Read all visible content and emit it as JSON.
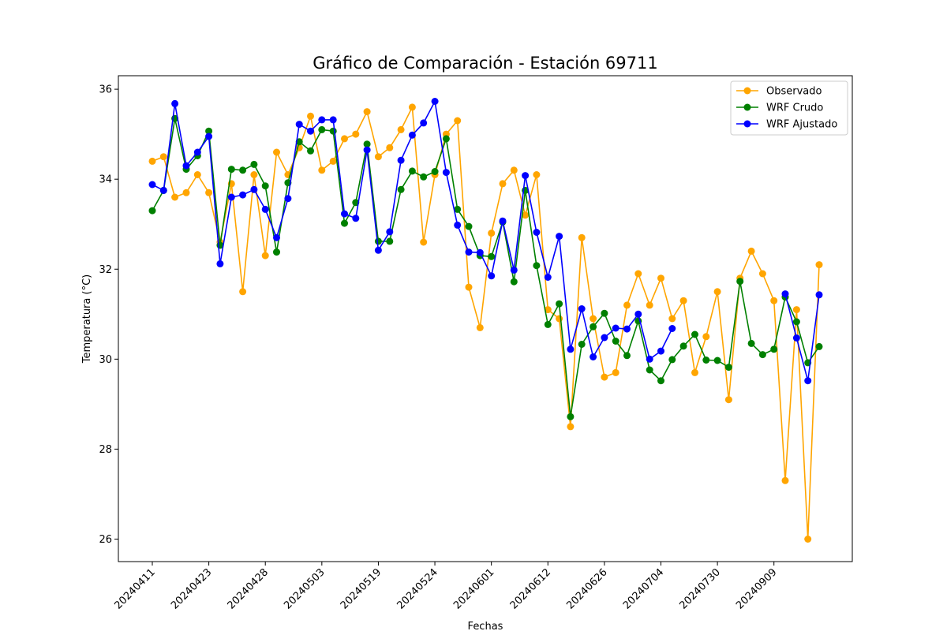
{
  "chart_data": {
    "type": "line",
    "title": "Gráfico de Comparación - Estación 69711",
    "xlabel": "Fechas",
    "ylabel": "Temperatura (°C)",
    "ylim": [
      25.5,
      36.3
    ],
    "yticks": [
      26,
      28,
      30,
      32,
      34,
      36
    ],
    "xtick_labels": [
      "20240411",
      "20240423",
      "20240428",
      "20240503",
      "20240519",
      "20240524",
      "20240601",
      "20240612",
      "20240626",
      "20240704",
      "20240730",
      "20240909"
    ],
    "xtick_every": 5,
    "legend_position": "top-right",
    "grid": false,
    "series": [
      {
        "name": "Observado",
        "color": "#ffa500",
        "values": [
          34.4,
          34.5,
          33.6,
          33.7,
          34.1,
          33.7,
          32.6,
          33.9,
          31.5,
          34.1,
          32.3,
          34.6,
          34.1,
          34.7,
          35.4,
          34.2,
          34.4,
          34.9,
          35.0,
          35.5,
          34.5,
          34.7,
          35.1,
          35.6,
          32.6,
          34.1,
          35.0,
          35.3,
          31.6,
          30.7,
          32.8,
          33.9,
          34.2,
          33.2,
          34.1,
          31.1,
          30.9,
          28.5,
          32.7,
          30.9,
          29.6,
          29.7,
          31.2,
          31.9,
          31.2,
          31.8,
          30.9,
          31.3,
          29.7,
          30.5,
          31.5,
          29.1,
          31.8,
          32.4,
          31.9,
          31.3,
          27.3,
          31.1,
          26.0,
          32.1
        ]
      },
      {
        "name": "WRF Crudo",
        "color": "#008000",
        "values": [
          33.3,
          33.75,
          35.35,
          34.22,
          34.52,
          35.07,
          32.53,
          34.22,
          34.2,
          34.33,
          33.85,
          32.38,
          33.92,
          34.83,
          34.63,
          35.1,
          35.07,
          33.02,
          33.48,
          34.78,
          32.62,
          32.62,
          33.77,
          34.18,
          34.05,
          34.17,
          34.9,
          33.33,
          32.95,
          32.3,
          32.28,
          33.05,
          31.72,
          33.75,
          32.08,
          30.77,
          31.23,
          28.72,
          30.33,
          30.72,
          31.02,
          30.4,
          30.08,
          30.85,
          29.76,
          29.52,
          29.99,
          30.29,
          30.55,
          29.98,
          29.97,
          29.82,
          31.73,
          30.35,
          30.1,
          30.22,
          31.38,
          30.83,
          29.92,
          30.28
        ]
      },
      {
        "name": "WRF Ajustado",
        "color": "#0000ff",
        "values": [
          33.88,
          33.75,
          35.68,
          34.3,
          34.6,
          34.95,
          32.12,
          33.6,
          33.65,
          33.77,
          33.33,
          32.7,
          33.57,
          35.22,
          35.07,
          35.32,
          35.32,
          33.23,
          33.13,
          34.65,
          32.42,
          32.83,
          34.42,
          34.98,
          35.25,
          35.73,
          34.15,
          32.98,
          32.38,
          32.37,
          31.85,
          33.07,
          31.98,
          34.08,
          32.82,
          31.82,
          32.73,
          30.22,
          31.12,
          30.05,
          30.48,
          30.69,
          30.67,
          31.0,
          30.0,
          30.18,
          30.68,
          null,
          null,
          null,
          null,
          null,
          null,
          null,
          null,
          null,
          31.45,
          30.47,
          29.52,
          31.43
        ]
      }
    ]
  }
}
